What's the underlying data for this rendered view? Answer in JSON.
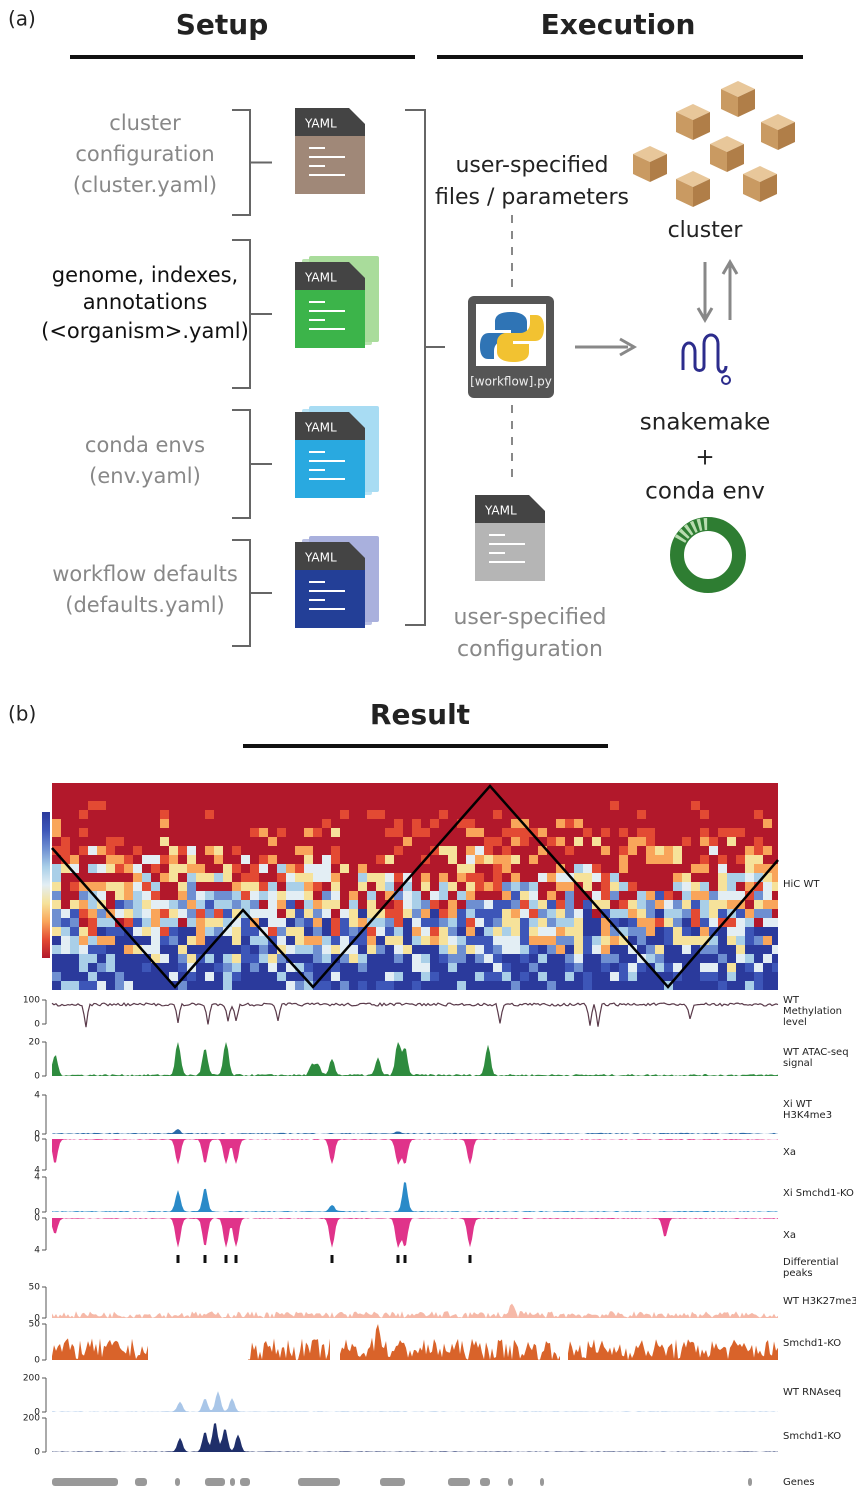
{
  "panel_a": {
    "label": "(a)",
    "setup_title": "Setup",
    "execution_title": "Execution",
    "config_files": [
      {
        "label": [
          "cluster",
          "configuration",
          "(cluster.yaml)"
        ],
        "icon": "YAML"
      },
      {
        "label": [
          "genome, indexes,",
          "annotations",
          "(<organism>.yaml)"
        ],
        "icon": "YAML"
      },
      {
        "label": [
          "conda envs",
          "(env.yaml)"
        ],
        "icon": "YAML"
      },
      {
        "label": [
          "workflow defaults",
          "(defaults.yaml)"
        ],
        "icon": "YAML"
      }
    ],
    "center": {
      "top_label": [
        "user-specified",
        "files / parameters"
      ],
      "workflow_file": "[workflow].py",
      "config_icon": "YAML",
      "bottom_label": [
        "user-specified",
        "configuration"
      ]
    },
    "execution": {
      "cluster": "cluster",
      "engine": [
        "snakemake",
        "+",
        "conda env"
      ]
    }
  },
  "panel_b": {
    "label": "(b)",
    "title": "Result",
    "heatmap_label": "HiC WT",
    "tracks": [
      {
        "label": [
          "WT",
          "Methylation",
          "level"
        ],
        "ticks": [
          100,
          0
        ]
      },
      {
        "label": [
          "WT ATAC-seq",
          "signal"
        ],
        "ticks": [
          20,
          0
        ]
      },
      {
        "label": [
          "Xi WT",
          "H3K4me3"
        ],
        "ticks": [
          4,
          0
        ]
      },
      {
        "label": [
          "Xa"
        ],
        "ticks": [
          0,
          4
        ]
      },
      {
        "label": [
          "Xi Smchd1-KO"
        ],
        "ticks": [
          4,
          0
        ]
      },
      {
        "label": [
          "Xa"
        ],
        "ticks": [
          0,
          4
        ]
      },
      {
        "label": [
          "Differential",
          "peaks"
        ],
        "ticks": []
      },
      {
        "label": [
          "WT H3K27me3"
        ],
        "ticks": [
          50,
          0
        ]
      },
      {
        "label": [
          "Smchd1-KO"
        ],
        "ticks": [
          50,
          0
        ]
      },
      {
        "label": [
          "WT RNAseq"
        ],
        "ticks": [
          200,
          0
        ]
      },
      {
        "label": [
          "Smchd1-KO"
        ],
        "ticks": [
          200,
          0
        ]
      },
      {
        "label": [
          "Genes"
        ],
        "ticks": []
      }
    ]
  }
}
